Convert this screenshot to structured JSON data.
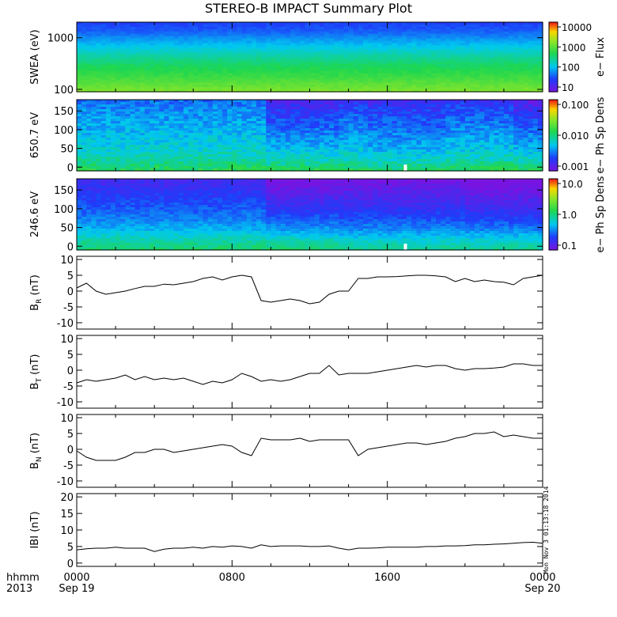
{
  "chart_data": {
    "title": "STEREO-B IMPACT Summary Plot",
    "type": "multi-panel",
    "x_axis": {
      "ticks": [
        "0000",
        "0800",
        "1600",
        "0000"
      ],
      "date_ticks": [
        "Sep 19",
        "",
        "",
        "Sep 20"
      ],
      "label_top": "hhmm",
      "label_bottom": "2013",
      "range_hours": [
        0,
        24
      ]
    },
    "panels": [
      {
        "kind": "spectrogram",
        "ylabel": "SWEA (eV)",
        "yscale": "log",
        "ylim": [
          90,
          2000
        ],
        "yticks": [
          "1000",
          "100"
        ],
        "colorbar": {
          "label": "e− Flux",
          "scale": "log",
          "ticks": [
            "10000",
            "1000",
            "100",
            "10"
          ]
        }
      },
      {
        "kind": "spectrogram",
        "ylabel": "650.7 eV",
        "yscale": "linear",
        "ylim": [
          -10,
          180
        ],
        "yticks": [
          "150",
          "100",
          "50",
          "0"
        ],
        "colorbar": {
          "label": "e− Ph Sp Dens",
          "scale": "log",
          "ticks": [
            "0.100",
            "0.010",
            "0.001"
          ]
        }
      },
      {
        "kind": "spectrogram",
        "ylabel": "246.6 eV",
        "yscale": "linear",
        "ylim": [
          -10,
          180
        ],
        "yticks": [
          "150",
          "100",
          "50",
          "0"
        ],
        "colorbar": {
          "label": "e− Ph Sp Dens",
          "scale": "log",
          "ticks": [
            "10.0",
            "1.0",
            "0.1"
          ]
        }
      },
      {
        "kind": "line",
        "ylabel": "B",
        "ylabel_sub": "R",
        "ylabel_unit": "(nT)",
        "ylim": [
          -12,
          11
        ],
        "yticks": [
          10,
          5,
          0,
          -5,
          -10
        ],
        "series": {
          "x": [
            0,
            0.5,
            1,
            1.5,
            2,
            2.5,
            3,
            3.5,
            4,
            4.5,
            5,
            5.5,
            6,
            6.5,
            7,
            7.5,
            8,
            8.5,
            9,
            9.5,
            10,
            10.5,
            11,
            11.5,
            12,
            12.5,
            13,
            13.5,
            14,
            14.5,
            15,
            15.5,
            16,
            16.5,
            17,
            17.5,
            18,
            18.5,
            19,
            19.5,
            20,
            20.5,
            21,
            21.5,
            22,
            22.5,
            23,
            23.5,
            24
          ],
          "y": [
            1,
            2.5,
            0,
            -1,
            -0.5,
            0,
            0.8,
            1.5,
            1.5,
            2.2,
            2,
            2.5,
            3,
            4,
            4.5,
            3.5,
            4.5,
            5,
            4.5,
            -3,
            -3.5,
            -3,
            -2.5,
            -3,
            -4,
            -3.5,
            -1,
            0,
            0,
            4,
            4,
            4.5,
            4.5,
            4.6,
            4.8,
            5,
            5,
            4.8,
            4.5,
            3,
            4,
            3,
            3.5,
            3,
            2.8,
            2,
            4,
            4.5,
            5
          ]
        }
      },
      {
        "kind": "line",
        "ylabel": "B",
        "ylabel_sub": "T",
        "ylabel_unit": "(nT)",
        "ylim": [
          -12,
          11
        ],
        "yticks": [
          10,
          5,
          0,
          -5,
          -10
        ],
        "series": {
          "x": [
            0,
            0.5,
            1,
            1.5,
            2,
            2.5,
            3,
            3.5,
            4,
            4.5,
            5,
            5.5,
            6,
            6.5,
            7,
            7.5,
            8,
            8.5,
            9,
            9.5,
            10,
            10.5,
            11,
            11.5,
            12,
            12.5,
            13,
            13.5,
            14,
            14.5,
            15,
            15.5,
            16,
            16.5,
            17,
            17.5,
            18,
            18.5,
            19,
            19.5,
            20,
            20.5,
            21,
            21.5,
            22,
            22.5,
            23,
            23.5,
            24
          ],
          "y": [
            -4,
            -3,
            -3.5,
            -3,
            -2.5,
            -1.5,
            -3,
            -2,
            -3,
            -2.5,
            -3,
            -2.5,
            -3.5,
            -4.5,
            -3.5,
            -4,
            -3,
            -1,
            -2,
            -3.5,
            -3,
            -3.5,
            -3,
            -2,
            -1,
            -1,
            1.5,
            -1.5,
            -1,
            -1,
            -1,
            -0.5,
            0,
            0.5,
            1,
            1.5,
            1,
            1.5,
            1.5,
            0.5,
            0,
            0.5,
            0.5,
            0.7,
            1,
            2,
            2,
            1.5,
            1.5
          ]
        }
      },
      {
        "kind": "line",
        "ylabel": "B",
        "ylabel_sub": "N",
        "ylabel_unit": "(nT)",
        "ylim": [
          -12,
          11
        ],
        "yticks": [
          10,
          5,
          0,
          -5,
          -10
        ],
        "series": {
          "x": [
            0,
            0.5,
            1,
            1.5,
            2,
            2.5,
            3,
            3.5,
            4,
            4.5,
            5,
            5.5,
            6,
            6.5,
            7,
            7.5,
            8,
            8.5,
            9,
            9.5,
            10,
            10.5,
            11,
            11.5,
            12,
            12.5,
            13,
            13.5,
            14,
            14.5,
            15,
            15.5,
            16,
            16.5,
            17,
            17.5,
            18,
            18.5,
            19,
            19.5,
            20,
            20.5,
            21,
            21.5,
            22,
            22.5,
            23,
            23.5,
            24
          ],
          "y": [
            -0.5,
            -2.5,
            -3.5,
            -3.5,
            -3.5,
            -2.5,
            -1,
            -1,
            0,
            0,
            -1,
            -0.5,
            0,
            0.5,
            1,
            1.5,
            1,
            -1,
            -2,
            3.5,
            3,
            3,
            3,
            3.5,
            2.5,
            3,
            3,
            3,
            3,
            -2,
            0,
            0.5,
            1,
            1.5,
            2,
            2,
            1.5,
            2,
            2.5,
            3.5,
            4,
            5,
            5,
            5.5,
            4,
            4.5,
            4,
            3.5,
            3.5
          ]
        }
      },
      {
        "kind": "line",
        "ylabel": "IBI",
        "ylabel_sub": "",
        "ylabel_unit": "(nT)",
        "ylim": [
          -1,
          21
        ],
        "yticks": [
          20,
          15,
          10,
          5,
          0
        ],
        "series": {
          "x": [
            0,
            0.5,
            1,
            1.5,
            2,
            2.5,
            3,
            3.5,
            4,
            4.5,
            5,
            5.5,
            6,
            6.5,
            7,
            7.5,
            8,
            8.5,
            9,
            9.5,
            10,
            10.5,
            11,
            11.5,
            12,
            12.5,
            13,
            13.5,
            14,
            14.5,
            15,
            15.5,
            16,
            16.5,
            17,
            17.5,
            18,
            18.5,
            19,
            19.5,
            20,
            20.5,
            21,
            21.5,
            22,
            22.5,
            23,
            23.5,
            24
          ],
          "y": [
            4,
            4.3,
            4.5,
            4.5,
            4.8,
            4.5,
            4.5,
            4.5,
            3.5,
            4.2,
            4.5,
            4.5,
            4.8,
            4.5,
            5,
            4.8,
            5.2,
            5,
            4.5,
            5.5,
            5,
            5.2,
            5.2,
            5.2,
            5,
            5,
            5.2,
            4.5,
            4,
            4.5,
            4.5,
            4.6,
            4.8,
            4.8,
            4.8,
            4.8,
            5,
            5,
            5.2,
            5.2,
            5.3,
            5.5,
            5.5,
            5.7,
            5.8,
            6,
            6.2,
            6.3,
            6
          ]
        }
      }
    ]
  },
  "side_stamp": "Mon Nov 3 01:13:18 2014",
  "colors": {
    "line": "#000000",
    "axes": "#000000",
    "background": "#ffffff"
  }
}
